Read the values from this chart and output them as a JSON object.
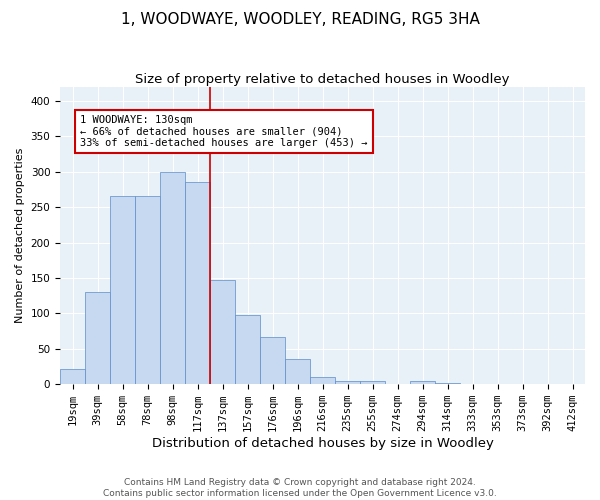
{
  "title": "1, WOODWAYE, WOODLEY, READING, RG5 3HA",
  "subtitle": "Size of property relative to detached houses in Woodley",
  "xlabel": "Distribution of detached houses by size in Woodley",
  "ylabel": "Number of detached properties",
  "bar_labels": [
    "19sqm",
    "39sqm",
    "58sqm",
    "78sqm",
    "98sqm",
    "117sqm",
    "137sqm",
    "157sqm",
    "176sqm",
    "196sqm",
    "216sqm",
    "235sqm",
    "255sqm",
    "274sqm",
    "294sqm",
    "314sqm",
    "333sqm",
    "353sqm",
    "373sqm",
    "392sqm",
    "412sqm"
  ],
  "bar_values": [
    22,
    130,
    265,
    265,
    300,
    285,
    147,
    98,
    66,
    36,
    10,
    5,
    4,
    1,
    5,
    2,
    1,
    1,
    0,
    1,
    0
  ],
  "bar_color": "#c6d9f0",
  "bar_edge_color": "#5b8bc9",
  "vline_x_index": 5.5,
  "vline_color": "#cc0000",
  "annotation_text": "1 WOODWAYE: 130sqm\n← 66% of detached houses are smaller (904)\n33% of semi-detached houses are larger (453) →",
  "annotation_box_color": "#ffffff",
  "annotation_box_edge": "#cc0000",
  "ylim": [
    0,
    420
  ],
  "yticks": [
    0,
    50,
    100,
    150,
    200,
    250,
    300,
    350,
    400
  ],
  "bg_color": "#e8f0f8",
  "footer_line1": "Contains HM Land Registry data © Crown copyright and database right 2024.",
  "footer_line2": "Contains public sector information licensed under the Open Government Licence v3.0.",
  "title_fontsize": 11,
  "subtitle_fontsize": 9.5,
  "xlabel_fontsize": 9.5,
  "ylabel_fontsize": 8,
  "tick_fontsize": 7.5,
  "footer_fontsize": 6.5,
  "annot_fontsize": 7.5
}
